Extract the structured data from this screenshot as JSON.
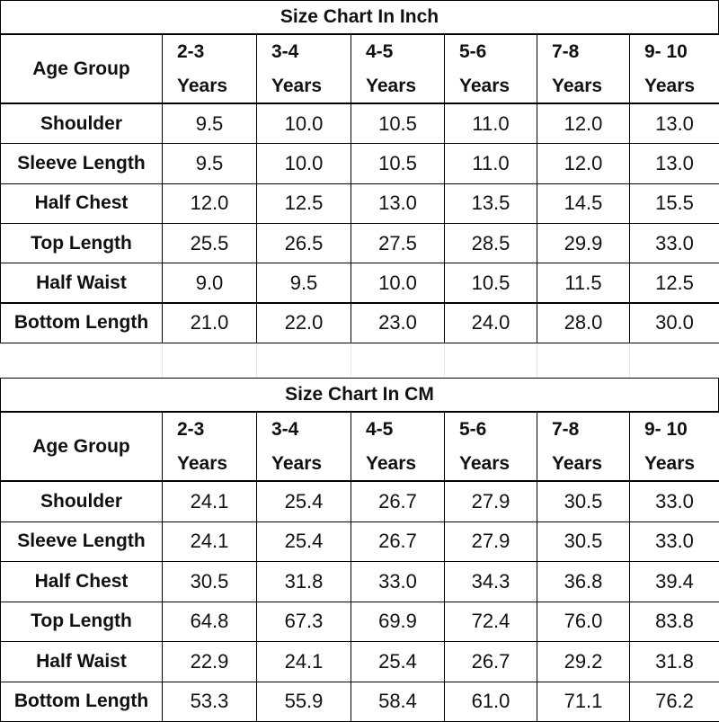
{
  "tables": [
    {
      "title": "Size Chart In Inch",
      "header": {
        "label": "Age Group",
        "columns": [
          [
            "2-3",
            "Years"
          ],
          [
            "3-4",
            "Years"
          ],
          [
            "4-5",
            "Years"
          ],
          [
            "5-6",
            "Years"
          ],
          [
            "7-8",
            "Years"
          ],
          [
            "9- 10",
            "Years"
          ]
        ]
      },
      "rows": [
        {
          "label": "Shoulder",
          "values": [
            "9.5",
            "10.0",
            "10.5",
            "11.0",
            "12.0",
            "13.0"
          ]
        },
        {
          "label": "Sleeve Length",
          "values": [
            "9.5",
            "10.0",
            "10.5",
            "11.0",
            "12.0",
            "13.0"
          ]
        },
        {
          "label": "Half Chest",
          "values": [
            "12.0",
            "12.5",
            "13.0",
            "13.5",
            "14.5",
            "15.5"
          ]
        },
        {
          "label": "Top Length",
          "values": [
            "25.5",
            "26.5",
            "27.5",
            "28.5",
            "29.9",
            "33.0"
          ]
        },
        {
          "label": "Half Waist",
          "values": [
            "9.0",
            "9.5",
            "10.0",
            "10.5",
            "11.5",
            "12.5"
          ]
        },
        {
          "label": "Bottom Length",
          "values": [
            "21.0",
            "22.0",
            "23.0",
            "24.0",
            "28.0",
            "30.0"
          ]
        }
      ]
    },
    {
      "title": "Size Chart In CM",
      "header": {
        "label": "Age Group",
        "columns": [
          [
            "2-3",
            "Years"
          ],
          [
            "3-4",
            "Years"
          ],
          [
            "4-5",
            "Years"
          ],
          [
            "5-6",
            "Years"
          ],
          [
            "7-8",
            "Years"
          ],
          [
            "9- 10",
            "Years"
          ]
        ]
      },
      "rows": [
        {
          "label": "Shoulder",
          "values": [
            "24.1",
            "25.4",
            "26.7",
            "27.9",
            "30.5",
            "33.0"
          ]
        },
        {
          "label": "Sleeve Length",
          "values": [
            "24.1",
            "25.4",
            "26.7",
            "27.9",
            "30.5",
            "33.0"
          ]
        },
        {
          "label": "Half Chest",
          "values": [
            "30.5",
            "31.8",
            "33.0",
            "34.3",
            "36.8",
            "39.4"
          ]
        },
        {
          "label": "Top Length",
          "values": [
            "64.8",
            "67.3",
            "69.9",
            "72.4",
            "76.0",
            "83.8"
          ]
        },
        {
          "label": "Half Waist",
          "values": [
            "22.9",
            "24.1",
            "25.4",
            "26.7",
            "29.2",
            "31.8"
          ]
        },
        {
          "label": "Bottom Length",
          "values": [
            "53.3",
            "55.9",
            "58.4",
            "61.0",
            "71.1",
            "76.2"
          ]
        }
      ]
    }
  ]
}
